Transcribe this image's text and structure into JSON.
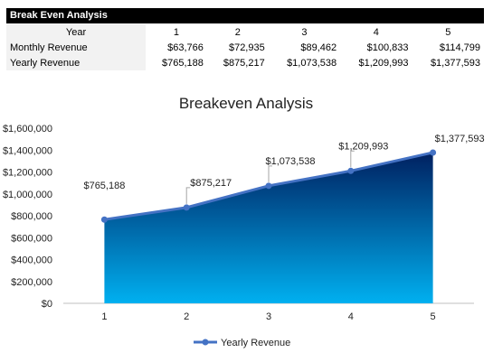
{
  "sheet": {
    "header": "Break Even Analysis",
    "rows": [
      {
        "label": "Year",
        "cells": [
          "1",
          "2",
          "3",
          "4",
          "5"
        ]
      },
      {
        "label": "Monthly Revenue",
        "cells": [
          "$63,766",
          "$72,935",
          "$89,462",
          "$100,833",
          "$114,799"
        ]
      },
      {
        "label": "Yearly Revenue",
        "cells": [
          "$765,188",
          "$875,217",
          "$1,073,538",
          "$1,209,993",
          "$1,377,593"
        ]
      }
    ]
  },
  "chart_data": {
    "type": "area",
    "title": "Breakeven Analysis",
    "xlabel": "",
    "ylabel": "",
    "categories": [
      "1",
      "2",
      "3",
      "4",
      "5"
    ],
    "series": [
      {
        "name": "Yearly Revenue",
        "values": [
          765188,
          875217,
          1073538,
          1209993,
          1377593
        ]
      }
    ],
    "data_labels": [
      "$765,188",
      "$875,217",
      "$1,073,538",
      "$1,209,993",
      "$1,377,593"
    ],
    "ylim": [
      0,
      1600000
    ],
    "yticks": [
      0,
      200000,
      400000,
      600000,
      800000,
      1000000,
      1200000,
      1400000,
      1600000
    ],
    "ytick_labels": [
      "$0",
      "$200,000",
      "$400,000",
      "$600,000",
      "$800,000",
      "$1,000,000",
      "$1,200,000",
      "$1,400,000",
      "$1,600,000"
    ],
    "grid": false,
    "legend": "bottom",
    "colors": {
      "line": "#4472c4",
      "fill_top": "#002060",
      "fill_bottom": "#00b0f0"
    }
  }
}
